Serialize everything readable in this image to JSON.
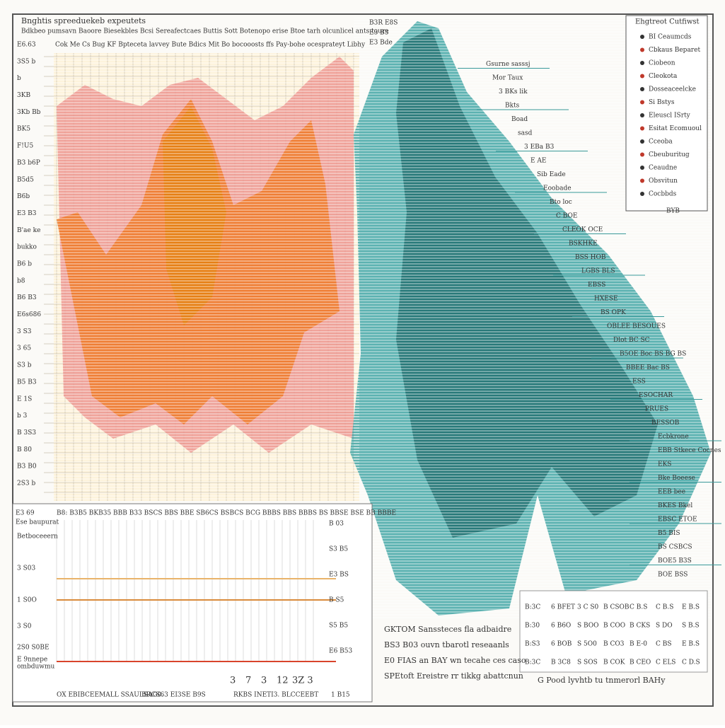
{
  "header": {
    "title": "Bnghtis spreeduekeb expeutets",
    "subtitle": "Bdkbeo pumsavn Baoore Biesekbles Bcsi Sereafectcaes Buttis Sott Botenopo erise Btoe tarh olcunlicel ants toure",
    "axis_caption": "Cok Me   Cs Bug  KF  Bpteceta lavvey  Bute Bdics Mit  Bo bocooosts ffs Pay-bohe ocesprateyt Libhy"
  },
  "left_axis_labels": [
    "E6.63",
    "3S5 b",
    "b",
    "3KB",
    "3Kb Bb",
    "BK5",
    "F!U5",
    "B3 b6P",
    "B5d5",
    "B6b",
    "E3 B3",
    "B'ae ke",
    "bukko",
    "B6 b",
    "b8",
    "B6 B3",
    "E6s686",
    "3 S3",
    "3 65",
    "S3 b",
    "B5 B3",
    "E 1S",
    "b 3",
    "B 3S3",
    "B 80",
    "B3 B0",
    "2S3 b"
  ],
  "right_labels": [
    "B3R E8S",
    "E3 B3",
    "E3 Bde",
    "Gsurne sasssj",
    "Mor Taux",
    "3 BKs lik",
    "Bkts",
    "Boad",
    "sasd",
    "3 EBa B3",
    "E AE",
    "Sib Eade",
    "Eoobade",
    "Bto loc",
    "C BOE",
    "CLEOK OCE",
    "BSKHKE",
    "BSS HOB",
    "LGBS BLS",
    "EBSS",
    "HXESE",
    "BS OPK",
    "OBLEE BESOUES",
    "Dlot BC SC",
    "B5OE Boc BS BG BS",
    "BBEE Bac BS",
    "ESS",
    "ESOCHAR",
    "PRUES",
    "BESSOB",
    "Ecbkrone",
    "EBB Stkece Cocnes",
    "EKS",
    "Bke Boeese",
    "EEB bee",
    "BKES Bkel",
    "EBSC ETOE",
    "B5 BIS",
    "BS CSBCS",
    "BOE5 B3S",
    "BOE BSS"
  ],
  "legend": {
    "title": "Ehgtreot Cutfiwst",
    "items": [
      "BI Ceaumcds",
      "Cbkaus Beparet",
      "Ciobeon",
      "Cleokota",
      "Dosseaceelcke",
      "Si Bstys",
      "Eleuscl ISrty",
      "Esitat Ecomuoul",
      "Cceoba",
      "Cbeuburitug",
      "Ceaudne",
      "Obsvitun",
      "Cocbbds"
    ],
    "footer": "BYB"
  },
  "lower_panel": {
    "top_labels": [
      "E3 69",
      "Ese baupurat",
      "B8: B3B5 BKB35 BBB B33 BSCS BBS BBE SB6CS BSBCS BCG BBBS BBS BBBS BS BBSE BSE BB BBBE"
    ],
    "left_labels": [
      "Betboceeern",
      "3 S03",
      "1 S0O",
      "3 S0",
      "2S0 S0BE",
      "E 9nnepe",
      "ombduwmu"
    ],
    "right_labels": [
      "B 03",
      "S3 B5",
      "E3 BS",
      "B S5",
      "S5 B5",
      "E6 B53"
    ],
    "bottom_numbers": [
      "3",
      "7",
      "3",
      "12",
      "3Z 3"
    ],
    "footer": [
      "OX EBIBCEEMALL SSAULSAG0.",
      "BRCS63 EI3SE B9S",
      "RKBS INETI3. BLCCEEBT",
      "1 B15"
    ]
  },
  "notes": [
    "GKTOM Sanssteces fla adbaidre",
    "BS3 B03 ouvn tbarotl reseaanls",
    "E0 FIAS an BAY wn tecahe ces caso",
    "SPEtoft Ereistre rr tikkg abattcnun"
  ],
  "table": {
    "rows": [
      [
        "B:3C",
        "6 BFET",
        "3 C S0",
        "B CSOB",
        "C B.S",
        "C B.S",
        "E B.S"
      ],
      [
        "B:30",
        "6 B6O",
        "S BOO",
        "B COO",
        "B CKS",
        "S DO",
        "S B.S"
      ],
      [
        "B:S3",
        "6 BOB",
        "S 5O0",
        "B CO3",
        "B E-0",
        "C BS",
        "E B.S"
      ],
      [
        "B:3C",
        "B 3C8",
        "S SOS",
        "B COK",
        "B CEO",
        "C ELS",
        "C D.S"
      ]
    ]
  },
  "caption": "G Pood lyvhtb tu tnmerorl BAHy"
}
